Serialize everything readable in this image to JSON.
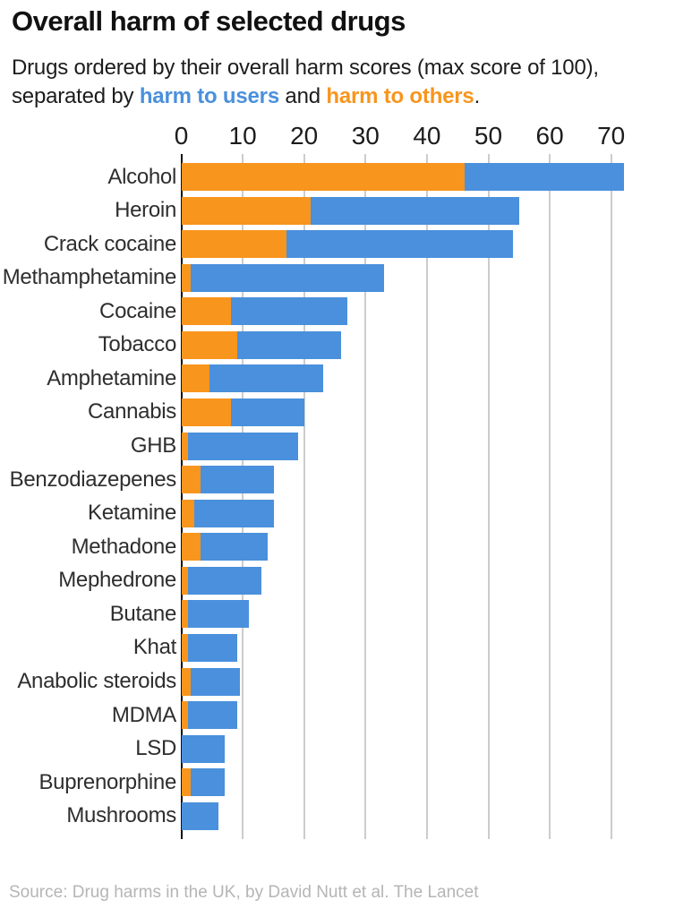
{
  "header": {
    "title": "Overall harm of selected drugs",
    "subtitle_line1": "Drugs ordered by their overall harm scores (max score of 100),",
    "subtitle_line2_prefix": "separated by ",
    "users_phrase": "harm to users",
    "subtitle_and": " and ",
    "others_phrase": "harm to others",
    "subtitle_period": "."
  },
  "colors": {
    "users_blue": "#4A90DC",
    "others_orange": "#F8951D",
    "gridline": "#CCCCCC",
    "axis": "#111111"
  },
  "chart_data": {
    "type": "bar",
    "orientation": "horizontal",
    "stacked": true,
    "title": "Overall harm of selected drugs",
    "xlabel": "",
    "ylabel": "",
    "xlim": [
      0,
      72
    ],
    "xticks": [
      0,
      10,
      20,
      30,
      40,
      50,
      60,
      70
    ],
    "grid": true,
    "legend_position": "inline-in-subtitle",
    "categories": [
      "Alcohol",
      "Heroin",
      "Crack cocaine",
      "Methamphetamine",
      "Cocaine",
      "Tobacco",
      "Amphetamine",
      "Cannabis",
      "GHB",
      "Benzodiazepenes",
      "Ketamine",
      "Methadone",
      "Mephedrone",
      "Butane",
      "Khat",
      "Anabolic steroids",
      "MDMA",
      "LSD",
      "Buprenorphine",
      "Mushrooms"
    ],
    "series": [
      {
        "name": "harm to others",
        "color": "#F8951D",
        "values": [
          46,
          21,
          17,
          1.5,
          8,
          9,
          4.5,
          8,
          1,
          3,
          2,
          3,
          1,
          1,
          1,
          1.5,
          1,
          0,
          1.5,
          0
        ]
      },
      {
        "name": "harm to users",
        "color": "#4A90DC",
        "values": [
          26,
          34,
          37,
          31.5,
          19,
          17,
          18.5,
          12,
          18,
          12,
          13,
          11,
          12,
          10,
          8,
          8,
          8,
          7,
          5.5,
          6
        ]
      }
    ],
    "totals": [
      72,
      55,
      54,
      33,
      27,
      26,
      23,
      20,
      19,
      15,
      15,
      14,
      13,
      11,
      9,
      9.5,
      9,
      7,
      7,
      6
    ]
  },
  "footer": {
    "source": "Source: Drug harms in the UK, by David Nutt et al. The Lancet"
  }
}
